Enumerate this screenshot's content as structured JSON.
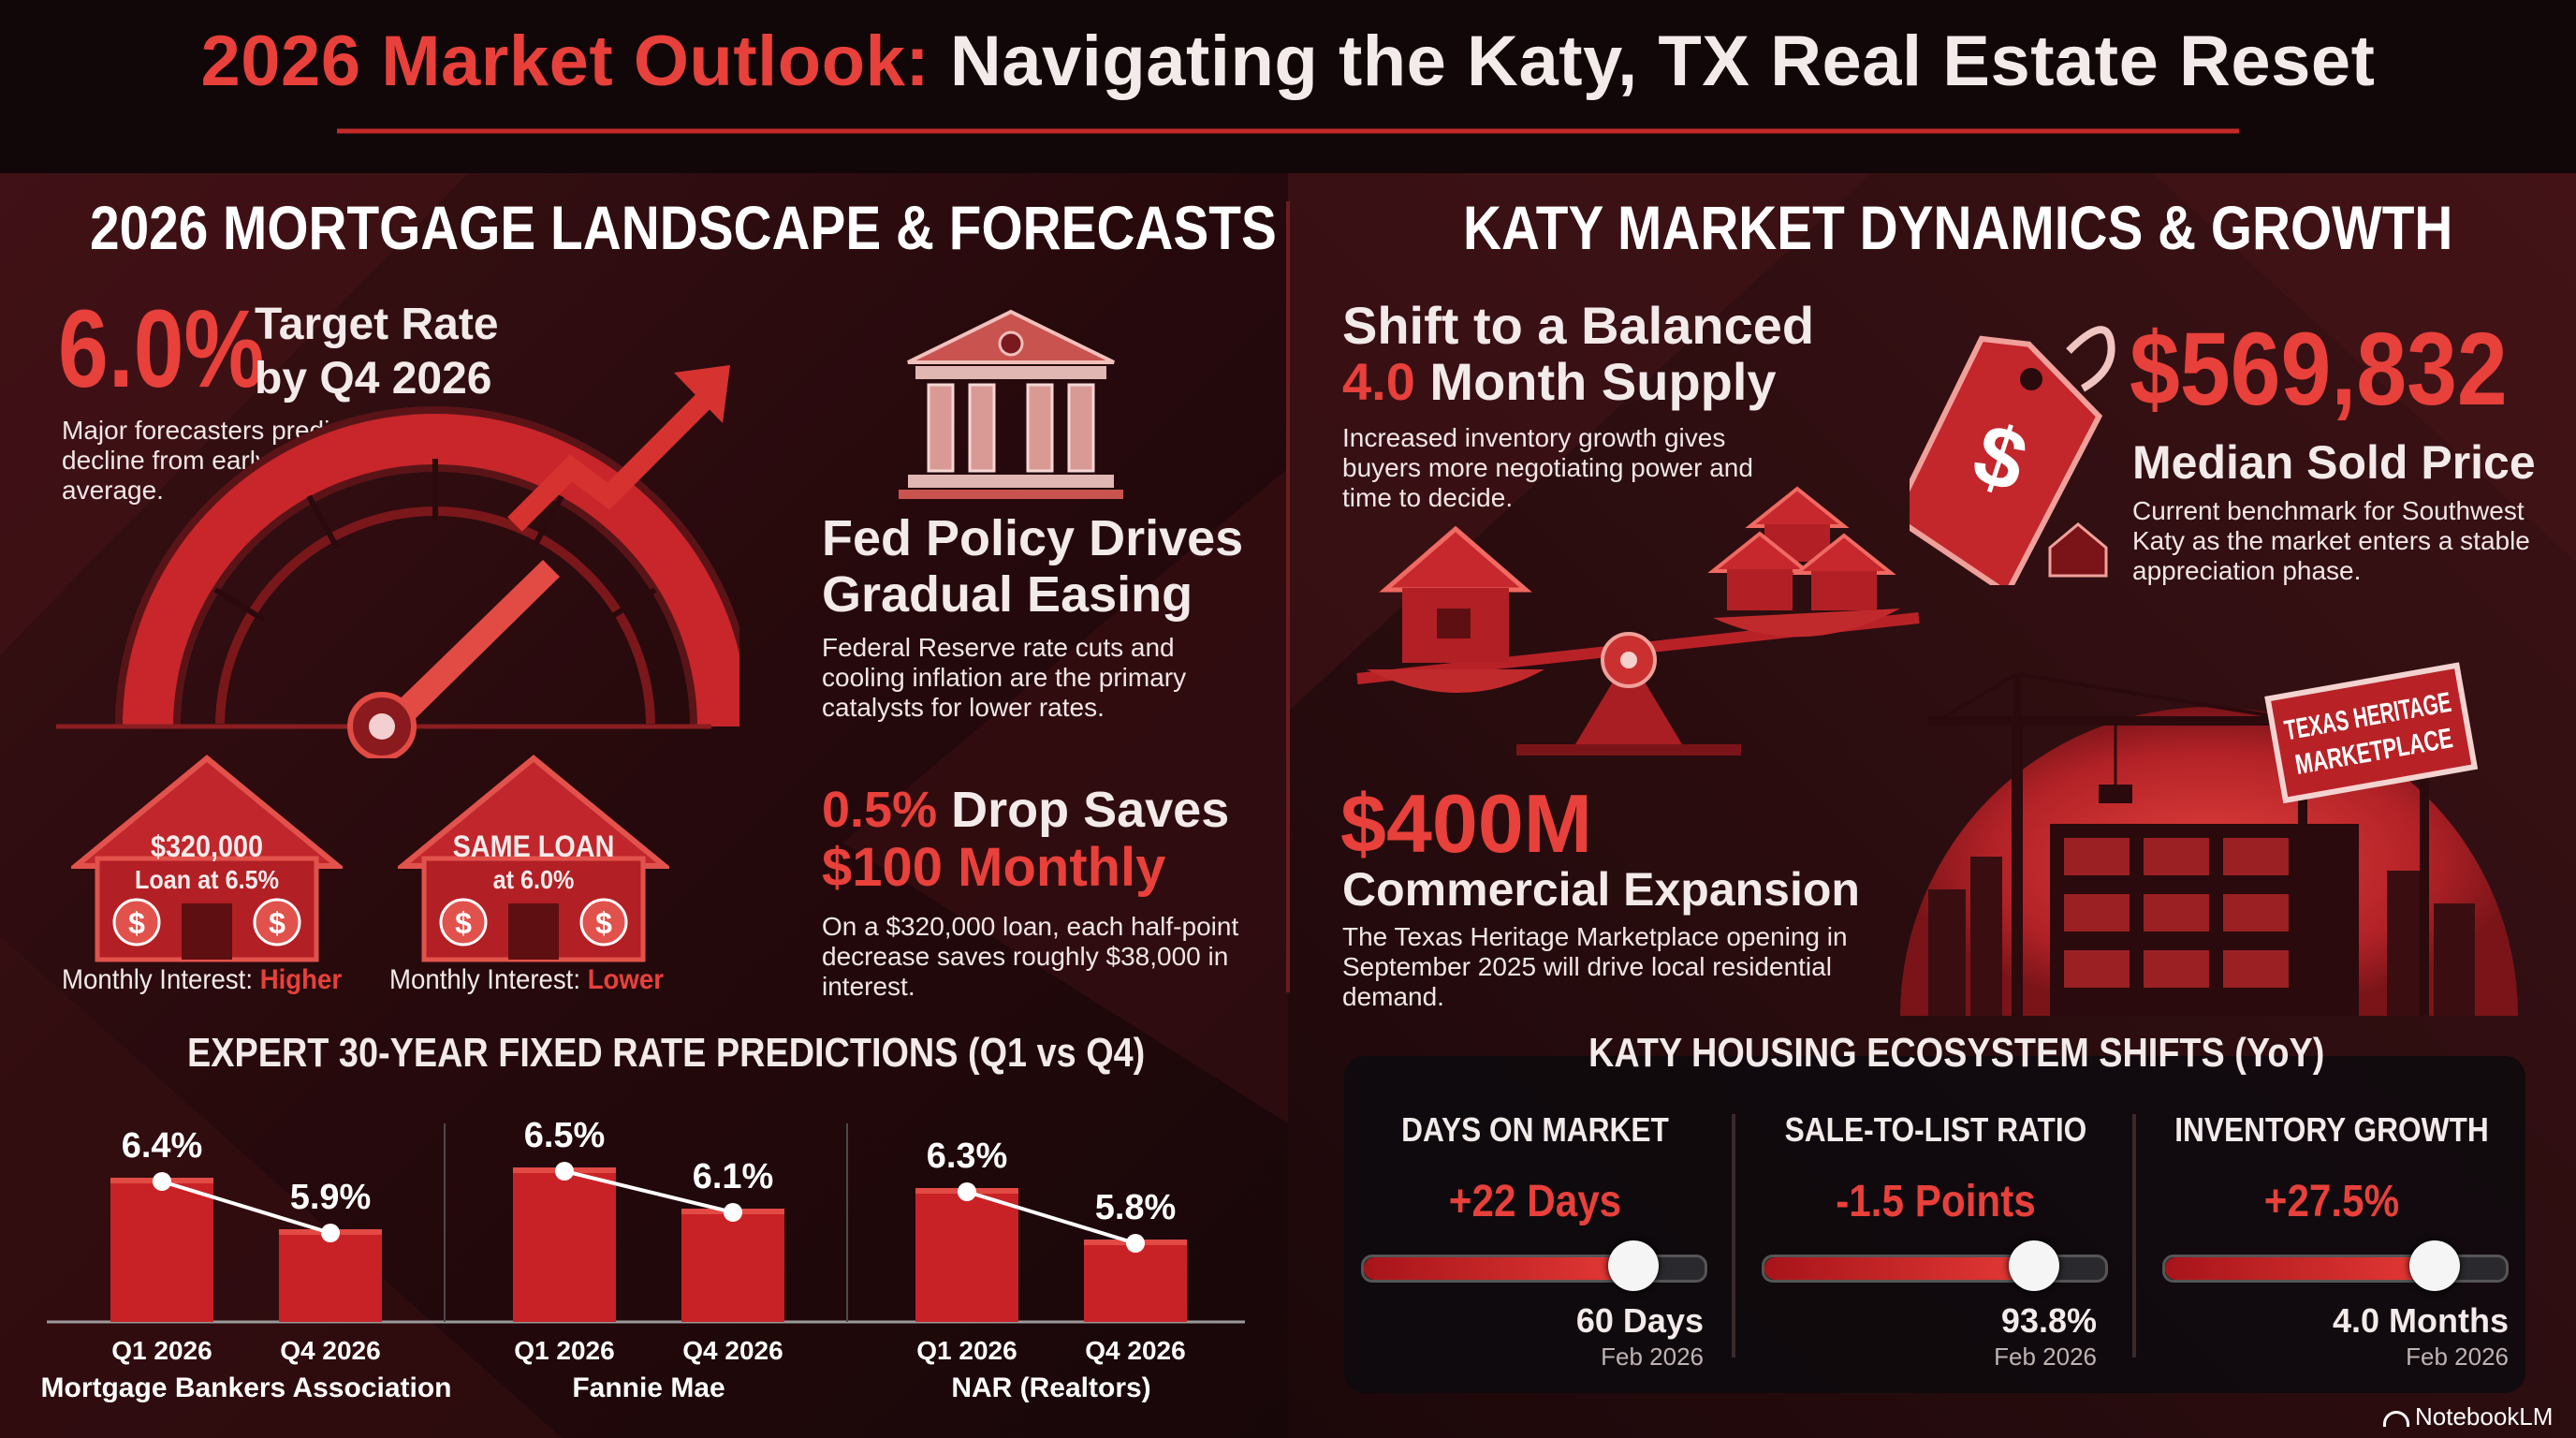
{
  "header": {
    "title_accent": "2026 Market Outlook:",
    "title_rest": "Navigating the Katy, TX Real Estate Reset"
  },
  "left": {
    "heading": "2026 MORTGAGE LANDSCAPE & FORECASTS",
    "target": {
      "rate": "6.0%",
      "label_line1": "Target Rate",
      "label_line2": "by Q4 2026",
      "desc": "Major forecasters predict a gradual decline from early 2026's 6.5% average.",
      "gauge_level": 0.72
    },
    "fed": {
      "title_line1": "Fed Policy Drives",
      "title_line2": "Gradual Easing",
      "desc": "Federal Reserve rate cuts and cooling inflation are the primary catalysts for lower rates."
    },
    "drop": {
      "accent": "0.5%",
      "line1_rest": "Drop Saves",
      "line2": "$100 Monthly",
      "desc": "On a $320,000 loan, each half-point decrease saves roughly $38,000 in interest."
    },
    "houses": [
      {
        "line1": "$320,000",
        "line2": "Loan at 6.5%",
        "caption_prefix": "Monthly Interest:",
        "caption_value": "Higher"
      },
      {
        "line1": "SAME LOAN",
        "line2": "at 6.0%",
        "caption_prefix": "Monthly Interest:",
        "caption_value": "Lower"
      }
    ],
    "predictions_heading": "EXPERT 30-YEAR FIXED RATE PREDICTIONS (Q1 vs Q4)"
  },
  "chart_data": {
    "type": "bar",
    "title": "EXPERT 30-YEAR FIXED RATE PREDICTIONS (Q1 vs Q4)",
    "groups": [
      {
        "name": "Mortgage Bankers Association",
        "categories": [
          "Q1 2026",
          "Q4 2026"
        ],
        "values": [
          6.4,
          5.9
        ],
        "labels": [
          "6.4%",
          "5.9%"
        ]
      },
      {
        "name": "Fannie Mae",
        "categories": [
          "Q1 2026",
          "Q4 2026"
        ],
        "values": [
          6.5,
          6.1
        ],
        "labels": [
          "6.5%",
          "6.1%"
        ]
      },
      {
        "name": "NAR (Realtors)",
        "categories": [
          "Q1 2026",
          "Q4 2026"
        ],
        "values": [
          6.3,
          5.8
        ],
        "labels": [
          "6.3%",
          "5.8%"
        ]
      }
    ],
    "unit": "%"
  },
  "right": {
    "heading": "KATY MARKET DYNAMICS & GROWTH",
    "supply": {
      "line1": "Shift to a Balanced",
      "accent": "4.0",
      "line2_rest": "Month Supply",
      "desc": "Increased inventory growth gives buyers more negotiating power and time to decide."
    },
    "price": {
      "value": "$569,832",
      "label": "Median Sold Price",
      "desc": "Current benchmark for Southwest Katy as the market enters a stable appreciation phase.",
      "tag_symbol": "$"
    },
    "commercial": {
      "value": "$400M",
      "label": "Commercial Expansion",
      "desc": "The Texas Heritage Marketplace opening in September 2025 will drive local residential demand.",
      "sign_line1": "TEXAS HERITAGE",
      "sign_line2": "MARKETPLACE"
    },
    "ecosystem": {
      "heading": "KATY HOUSING ECOSYSTEM SHIFTS (YoY)",
      "cards": [
        {
          "title": "DAYS ON MARKET",
          "change": "+22 Days",
          "value": "60 Days",
          "date": "Feb 2026",
          "level": 0.8
        },
        {
          "title": "SALE-TO-LIST RATIO",
          "change": "-1.5 Points",
          "value": "93.8%",
          "date": "Feb 2026",
          "level": 0.8
        },
        {
          "title": "INVENTORY GROWTH",
          "change": "+27.5%",
          "value": "4.0 Months",
          "date": "Feb 2026",
          "level": 0.8
        }
      ]
    }
  },
  "footer": {
    "brand": "NotebookLM"
  },
  "colors": {
    "accent": "#e8403b",
    "background": "#1a0b0d",
    "bar": "#d42a28"
  },
  "icons": [
    "bank-icon",
    "gauge-icon",
    "trend-arrow-icon",
    "house-icon",
    "dollar-coin-icon",
    "price-tag-icon",
    "balance-scale-icon",
    "construction-crane-icon",
    "notebooklm-icon"
  ]
}
